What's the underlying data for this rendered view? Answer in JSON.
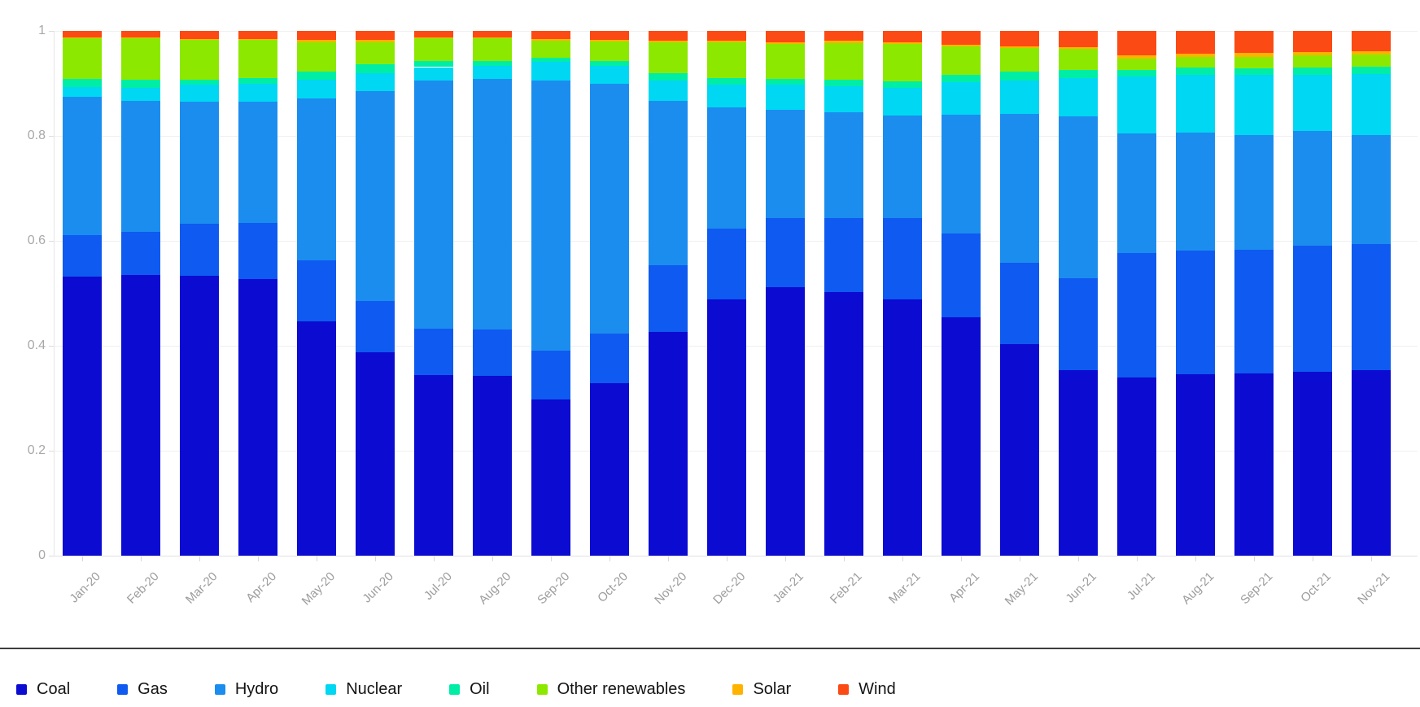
{
  "chart_data": {
    "type": "bar",
    "stacked": true,
    "normalized": true,
    "title": "",
    "xlabel": "",
    "ylabel": "",
    "ylim": [
      0,
      1
    ],
    "yticks": [
      0,
      0.2,
      0.4,
      0.6,
      0.8,
      1
    ],
    "ytick_labels": [
      "0",
      "0.2",
      "0.4",
      "0.6",
      "0.8",
      "1"
    ],
    "grid": true,
    "legend_position": "bottom",
    "categories": [
      "Jan-20",
      "Feb-20",
      "Mar-20",
      "Apr-20",
      "May-20",
      "Jun-20",
      "Jul-20",
      "Aug-20",
      "Sep-20",
      "Oct-20",
      "Nov-20",
      "Dec-20",
      "Jan-21",
      "Feb-21",
      "Mar-21",
      "Apr-21",
      "May-21",
      "Jun-21",
      "Jul-21",
      "Aug-21",
      "Sep-21",
      "Oct-21",
      "Nov-21"
    ],
    "series": [
      {
        "name": "Coal",
        "color": "#0b0bd2",
        "values": [
          0.532,
          0.535,
          0.533,
          0.527,
          0.447,
          0.388,
          0.344,
          0.343,
          0.297,
          0.328,
          0.427,
          0.489,
          0.511,
          0.502,
          0.489,
          0.455,
          0.403,
          0.354,
          0.34,
          0.346,
          0.348,
          0.351,
          0.354
        ]
      },
      {
        "name": "Gas",
        "color": "#0f5af0",
        "values": [
          0.079,
          0.082,
          0.1,
          0.107,
          0.116,
          0.098,
          0.089,
          0.088,
          0.093,
          0.096,
          0.127,
          0.135,
          0.133,
          0.141,
          0.154,
          0.159,
          0.155,
          0.174,
          0.236,
          0.235,
          0.235,
          0.24,
          0.24
        ]
      },
      {
        "name": "Hydro",
        "color": "#1b8def",
        "values": [
          0.264,
          0.25,
          0.232,
          0.231,
          0.308,
          0.4,
          0.472,
          0.477,
          0.515,
          0.475,
          0.313,
          0.23,
          0.206,
          0.202,
          0.195,
          0.226,
          0.284,
          0.309,
          0.229,
          0.225,
          0.218,
          0.218,
          0.207
        ]
      },
      {
        "name": "Nuclear",
        "color": "#00d7f2",
        "values": [
          0.018,
          0.024,
          0.032,
          0.034,
          0.036,
          0.034,
          0.026,
          0.025,
          0.036,
          0.034,
          0.038,
          0.043,
          0.047,
          0.05,
          0.053,
          0.063,
          0.064,
          0.073,
          0.108,
          0.111,
          0.115,
          0.108,
          0.117
        ]
      },
      {
        "name": "Oil",
        "color": "#00eda6",
        "values": [
          0.015,
          0.016,
          0.01,
          0.011,
          0.015,
          0.016,
          0.012,
          0.01,
          0.008,
          0.009,
          0.015,
          0.013,
          0.011,
          0.012,
          0.013,
          0.014,
          0.016,
          0.015,
          0.012,
          0.013,
          0.013,
          0.013,
          0.014
        ]
      },
      {
        "name": "Other renewables",
        "color": "#8de800",
        "values": [
          0.078,
          0.079,
          0.076,
          0.073,
          0.056,
          0.043,
          0.043,
          0.043,
          0.033,
          0.038,
          0.059,
          0.068,
          0.067,
          0.07,
          0.071,
          0.053,
          0.046,
          0.041,
          0.022,
          0.02,
          0.022,
          0.023,
          0.023
        ]
      },
      {
        "name": "Solar",
        "color": "#ffb300",
        "values": [
          0.002,
          0.002,
          0.002,
          0.002,
          0.005,
          0.004,
          0.002,
          0.002,
          0.003,
          0.003,
          0.003,
          0.003,
          0.004,
          0.004,
          0.004,
          0.004,
          0.003,
          0.003,
          0.006,
          0.006,
          0.007,
          0.007,
          0.006
        ]
      },
      {
        "name": "Wind",
        "color": "#fb4a14",
        "values": [
          0.012,
          0.012,
          0.015,
          0.015,
          0.017,
          0.017,
          0.012,
          0.012,
          0.015,
          0.017,
          0.018,
          0.019,
          0.021,
          0.019,
          0.021,
          0.026,
          0.029,
          0.031,
          0.047,
          0.044,
          0.042,
          0.04,
          0.039
        ]
      }
    ]
  }
}
